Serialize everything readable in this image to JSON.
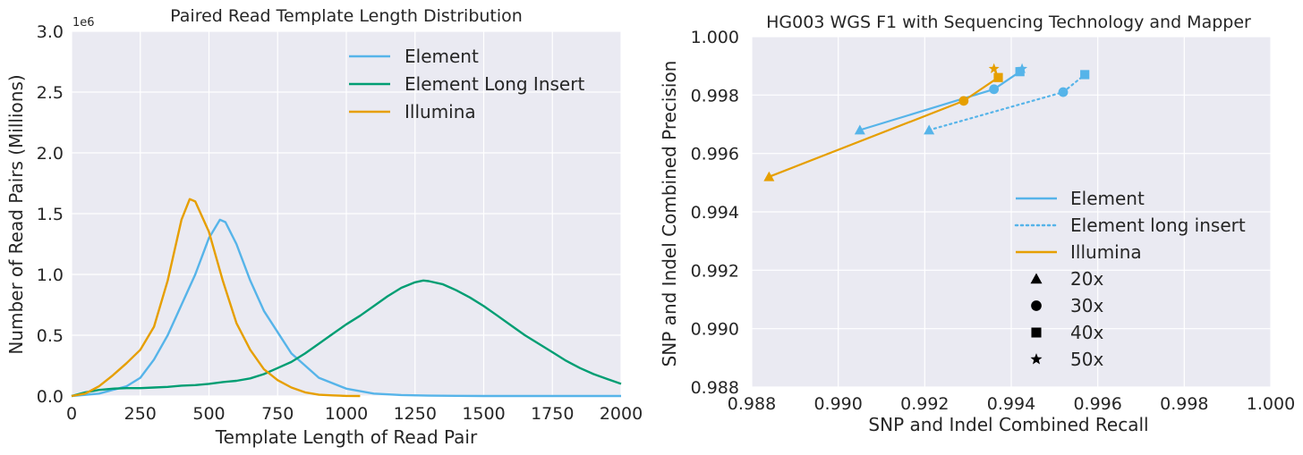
{
  "colors": {
    "element": "#56B4E9",
    "element_long_insert": "#009E73",
    "illumina": "#E69F00",
    "panel_bg": "#EAEAF2",
    "grid": "#FFFFFF",
    "text": "#262626"
  },
  "chart_data": [
    {
      "type": "line",
      "title": "Paired Read Template Length Distribution",
      "xlabel": "Template Length of Read Pair",
      "ylabel": "Number of Read Pairs (Millions)",
      "y_offset_label": "1e6",
      "xlim": [
        0,
        2000
      ],
      "ylim": [
        0,
        3000000
      ],
      "xticks": [
        0,
        250,
        500,
        750,
        1000,
        1250,
        1500,
        1750,
        2000
      ],
      "xtick_labels": [
        "0",
        "250",
        "500",
        "750",
        "1000",
        "1250",
        "1500",
        "1750",
        "2000"
      ],
      "yticks": [
        0,
        500000,
        1000000,
        1500000,
        2000000,
        2500000,
        3000000
      ],
      "ytick_labels": [
        "0.0",
        "0.5",
        "1.0",
        "1.5",
        "2.0",
        "2.5",
        "3.0"
      ],
      "grid": true,
      "legend_position": "top-center",
      "series": [
        {
          "name": "Element",
          "color": "#56B4E9",
          "x": [
            0,
            100,
            200,
            250,
            300,
            350,
            400,
            450,
            500,
            540,
            560,
            600,
            650,
            700,
            800,
            900,
            1000,
            1100,
            1200,
            1300,
            1500,
            2000
          ],
          "y": [
            0,
            20000,
            80000,
            150000,
            300000,
            500000,
            750000,
            1000000,
            1300000,
            1450000,
            1430000,
            1250000,
            950000,
            700000,
            350000,
            150000,
            60000,
            20000,
            8000,
            3000,
            0,
            0
          ]
        },
        {
          "name": "Element Long Insert",
          "color": "#009E73",
          "x": [
            0,
            50,
            100,
            150,
            200,
            250,
            300,
            350,
            400,
            450,
            500,
            550,
            600,
            650,
            700,
            750,
            800,
            850,
            900,
            950,
            1000,
            1050,
            1100,
            1150,
            1200,
            1250,
            1280,
            1300,
            1350,
            1400,
            1450,
            1500,
            1550,
            1600,
            1650,
            1700,
            1750,
            1800,
            1850,
            1900,
            1950,
            2000
          ],
          "y": [
            0,
            30000,
            50000,
            60000,
            65000,
            65000,
            70000,
            75000,
            85000,
            90000,
            100000,
            115000,
            125000,
            145000,
            180000,
            230000,
            280000,
            350000,
            430000,
            510000,
            590000,
            660000,
            740000,
            820000,
            890000,
            935000,
            950000,
            945000,
            920000,
            870000,
            810000,
            740000,
            660000,
            580000,
            500000,
            430000,
            360000,
            290000,
            230000,
            180000,
            140000,
            100000
          ]
        },
        {
          "name": "Illumina",
          "color": "#E69F00",
          "x": [
            0,
            50,
            100,
            150,
            200,
            250,
            300,
            350,
            400,
            430,
            450,
            500,
            550,
            600,
            650,
            700,
            750,
            800,
            850,
            900,
            950,
            1000,
            1050
          ],
          "y": [
            0,
            20000,
            80000,
            170000,
            270000,
            380000,
            570000,
            950000,
            1450000,
            1620000,
            1600000,
            1350000,
            950000,
            600000,
            380000,
            220000,
            130000,
            70000,
            30000,
            10000,
            5000,
            1000,
            0
          ]
        }
      ]
    },
    {
      "type": "scatter",
      "title": "HG003 WGS F1 with Sequencing Technology and Mapper",
      "xlabel": "SNP and Indel Combined Recall",
      "ylabel": "SNP and Indel Combined Precision",
      "xlim": [
        0.988,
        1.0
      ],
      "ylim": [
        0.988,
        1.0
      ],
      "xticks": [
        0.988,
        0.99,
        0.992,
        0.994,
        0.996,
        0.998,
        1.0
      ],
      "xtick_labels": [
        "0.988",
        "0.990",
        "0.992",
        "0.994",
        "0.996",
        "0.998",
        "1.000"
      ],
      "yticks": [
        0.988,
        0.99,
        0.992,
        0.994,
        0.996,
        0.998,
        1.0
      ],
      "ytick_labels": [
        "0.988",
        "0.990",
        "0.992",
        "0.994",
        "0.996",
        "0.998",
        "1.000"
      ],
      "grid": true,
      "legend_position": "lower-right",
      "series": [
        {
          "name": "Element",
          "color": "#56B4E9",
          "line_style": "solid",
          "points": [
            {
              "coverage": "20x",
              "marker": "triangle",
              "x": 0.9905,
              "y": 0.9968
            },
            {
              "coverage": "30x",
              "marker": "circle",
              "x": 0.9936,
              "y": 0.9982
            },
            {
              "coverage": "40x",
              "marker": "square",
              "x": 0.9942,
              "y": 0.9988
            },
            {
              "coverage": "50x",
              "marker": "star",
              "x": 0.99425,
              "y": 0.9989
            }
          ]
        },
        {
          "name": "Element long insert",
          "color": "#56B4E9",
          "line_style": "dotted",
          "points": [
            {
              "coverage": "20x",
              "marker": "triangle",
              "x": 0.9921,
              "y": 0.9968
            },
            {
              "coverage": "30x",
              "marker": "circle",
              "x": 0.9952,
              "y": 0.9981
            },
            {
              "coverage": "40x",
              "marker": "square",
              "x": 0.9957,
              "y": 0.9987
            }
          ]
        },
        {
          "name": "Illumina",
          "color": "#E69F00",
          "line_style": "solid",
          "points": [
            {
              "coverage": "20x",
              "marker": "triangle",
              "x": 0.9884,
              "y": 0.9952
            },
            {
              "coverage": "30x",
              "marker": "circle",
              "x": 0.9929,
              "y": 0.9978
            },
            {
              "coverage": "40x",
              "marker": "square",
              "x": 0.9937,
              "y": 0.9986
            },
            {
              "coverage": "50x",
              "marker": "star",
              "x": 0.9936,
              "y": 0.9989
            }
          ]
        }
      ],
      "marker_legend": [
        {
          "label": "20x",
          "marker": "triangle"
        },
        {
          "label": "30x",
          "marker": "circle"
        },
        {
          "label": "40x",
          "marker": "square"
        },
        {
          "label": "50x",
          "marker": "star"
        }
      ]
    }
  ]
}
